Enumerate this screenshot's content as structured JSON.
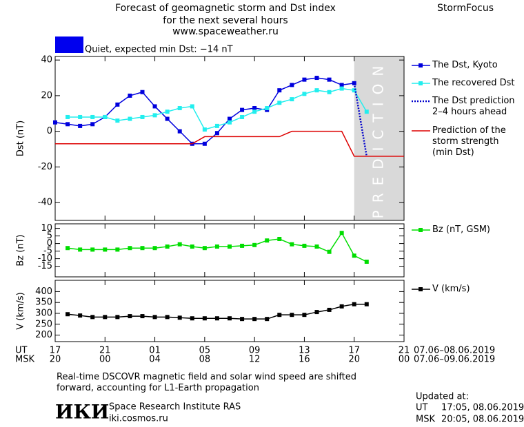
{
  "header": {
    "title": "Forecast of geomagnetic storm and Dst index",
    "subtitle": "for the next several hours",
    "source": "www.spaceweather.ru",
    "brand": "StormFocus"
  },
  "status": {
    "label": "Quiet, expected min Dst: −14 nT",
    "color": "#0000ee"
  },
  "chart_data": [
    {
      "type": "line",
      "ylabel": "Dst (nT)",
      "xlim": [
        0,
        28
      ],
      "ylim": [
        -50,
        42
      ],
      "yticks": [
        -40,
        -20,
        0,
        20,
        40
      ],
      "prediction_region": {
        "x": [
          24,
          28
        ],
        "label": "PREDICTION"
      },
      "series": [
        {
          "name": "The Dst, Kyoto",
          "color": "#0000dd",
          "marker": "square",
          "line_style": "solid",
          "x": [
            0,
            1,
            2,
            3,
            4,
            5,
            6,
            7,
            8,
            9,
            10,
            11,
            12,
            13,
            14,
            15,
            16,
            17,
            18,
            19,
            20,
            21,
            22,
            23,
            24
          ],
          "values": [
            5,
            4,
            3,
            4,
            8,
            15,
            20,
            22,
            14,
            7,
            0,
            -7,
            -7,
            -1,
            7,
            12,
            13,
            12,
            23,
            26,
            29,
            30,
            29,
            26,
            27
          ]
        },
        {
          "name": "The recovered Dst",
          "color": "#22eeee",
          "marker": "square",
          "line_style": "solid",
          "x": [
            1,
            2,
            3,
            4,
            5,
            6,
            7,
            8,
            9,
            10,
            11,
            12,
            13,
            14,
            15,
            16,
            17,
            18,
            19,
            20,
            21,
            22,
            23,
            24,
            25
          ],
          "values": [
            8,
            8,
            8,
            8,
            6,
            7,
            8,
            9,
            11,
            13,
            14,
            1,
            3,
            5,
            8,
            11,
            13,
            16,
            18,
            21,
            23,
            22,
            24,
            23,
            11
          ]
        },
        {
          "name": "The Dst prediction\n2–4 hours ahead",
          "color": "#0000cc",
          "marker": "none",
          "line_style": "dotted",
          "x": [
            24,
            25
          ],
          "values": [
            27,
            -14
          ]
        },
        {
          "name": "Prediction of the\nstorm strength\n(min Dst)",
          "color": "#dd0000",
          "marker": "none",
          "line_style": "solid",
          "x": [
            0,
            11,
            12,
            18,
            19,
            23,
            24,
            28
          ],
          "values": [
            -7,
            -7,
            -3,
            -3,
            0,
            0,
            -14,
            -14
          ]
        }
      ]
    },
    {
      "type": "line",
      "ylabel": "Bz (nT)",
      "xlim": [
        0,
        28
      ],
      "ylim": [
        -22,
        13
      ],
      "yticks": [
        10,
        5,
        0,
        -5,
        -10,
        -15
      ],
      "series": [
        {
          "name": "Bz (nT, GSM)",
          "color": "#00dd00",
          "marker": "square",
          "line_style": "solid",
          "x": [
            1,
            2,
            3,
            4,
            5,
            6,
            7,
            8,
            9,
            10,
            11,
            12,
            13,
            14,
            15,
            16,
            17,
            18,
            19,
            20,
            21,
            22,
            23,
            24,
            25
          ],
          "values": [
            -3,
            -4,
            -4,
            -4,
            -4,
            -3,
            -3,
            -3,
            -2,
            -0.5,
            -2,
            -3,
            -2,
            -2,
            -1.5,
            -1,
            2,
            3,
            -0.5,
            -1.5,
            -2,
            -5.5,
            7,
            -8,
            -12
          ]
        }
      ]
    },
    {
      "type": "line",
      "ylabel": "V (km/s)",
      "xlim": [
        0,
        28
      ],
      "ylim": [
        170,
        452
      ],
      "yticks": [
        400,
        350,
        300,
        250,
        200
      ],
      "xlabel": "UT",
      "x2label": "MSK",
      "xrange_label": "07.06–08.06.2019",
      "x2range_label": "07.06–09.06.2019",
      "xticks": [
        {
          "value": 0,
          "label": "17"
        },
        {
          "value": 4,
          "label": "21"
        },
        {
          "value": 8,
          "label": "01"
        },
        {
          "value": 12,
          "label": "05"
        },
        {
          "value": 16,
          "label": "09"
        },
        {
          "value": 20,
          "label": "13"
        },
        {
          "value": 24,
          "label": "17"
        },
        {
          "value": 28,
          "label": "21"
        }
      ],
      "x2ticks": [
        {
          "value": 0,
          "label": "20"
        },
        {
          "value": 4,
          "label": "00"
        },
        {
          "value": 8,
          "label": "04"
        },
        {
          "value": 12,
          "label": "08"
        },
        {
          "value": 16,
          "label": "12"
        },
        {
          "value": 20,
          "label": "16"
        },
        {
          "value": 24,
          "label": "20"
        },
        {
          "value": 28,
          "label": "00"
        }
      ],
      "series": [
        {
          "name": "V (km/s)",
          "color": "#000000",
          "marker": "square",
          "line_style": "solid",
          "x": [
            1,
            2,
            3,
            4,
            5,
            6,
            7,
            8,
            9,
            10,
            11,
            12,
            13,
            14,
            15,
            16,
            17,
            18,
            19,
            20,
            21,
            22,
            23,
            24,
            25
          ],
          "values": [
            296,
            290,
            283,
            283,
            283,
            287,
            287,
            283,
            283,
            280,
            277,
            277,
            277,
            277,
            274,
            274,
            274,
            293,
            293,
            293,
            306,
            316,
            332,
            342,
            342
          ]
        }
      ]
    }
  ],
  "footer": {
    "note": "Real-time DSCOVR magnetic field and solar wind speed are shifted\nforward, accounting for L1-Earth propagation",
    "logo": "ИКИ",
    "institute": "Space Research Institute RAS",
    "site": "iki.cosmos.ru",
    "updated": {
      "label": "Updated at:",
      "ut_label": "UT",
      "ut": "17:05, 08.06.2019",
      "msk_label": "MSK",
      "msk": "20:05, 08.06.2019"
    }
  }
}
